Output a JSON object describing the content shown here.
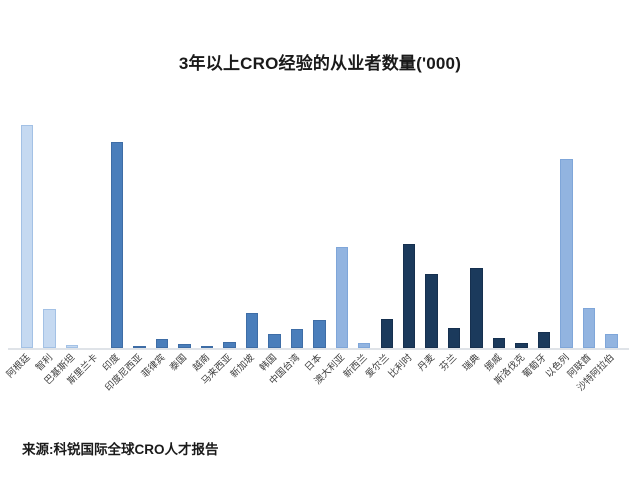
{
  "source_note": "来源:科锐国际全球CRO人才报告",
  "colors": {
    "background": "#ffffff",
    "axis_line": "#dfe3e8",
    "light_blue": "#c5d9f1",
    "medium_blue": "#4a7ebb",
    "light_medium_blue": "#92b4e0",
    "dark_navy": "#1b3a5c",
    "label_text": "#3f3f3f",
    "title_text": "#1a1a1a"
  },
  "chart_data": {
    "type": "bar",
    "title": "3年以上CRO经验的从业者数量('000)",
    "xlabel": "",
    "ylabel": "",
    "units": "'000",
    "legend": "none",
    "gridlines": false,
    "y_axis_visible": false,
    "ylim": [
      0,
      240
    ],
    "categories": [
      "阿根廷",
      "智利",
      "巴基斯坦",
      "斯里兰卡",
      "印度",
      "印度尼西亚",
      "菲律宾",
      "泰国",
      "越南",
      "马来西亚",
      "新加坡",
      "韩国",
      "中国台湾",
      "日本",
      "澳大利亚",
      "新西兰",
      "爱尔兰",
      "比利时",
      "丹麦",
      "芬兰",
      "瑞典",
      "挪威",
      "斯洛伐克",
      "葡萄牙",
      "以色列",
      "阿联酋",
      "沙特阿拉伯"
    ],
    "values": [
      223,
      39,
      3,
      0,
      206,
      2.5,
      9,
      4,
      2.5,
      6,
      35,
      14,
      19,
      28,
      101,
      5,
      29,
      104,
      74,
      20,
      80,
      10,
      5,
      16,
      189,
      40,
      14
    ],
    "bar_colors": [
      "#c5d9f1",
      "#c5d9f1",
      "#c5d9f1",
      "#c5d9f1",
      "#4a7ebb",
      "#4a7ebb",
      "#4a7ebb",
      "#4a7ebb",
      "#4a7ebb",
      "#4a7ebb",
      "#4a7ebb",
      "#4a7ebb",
      "#4a7ebb",
      "#4a7ebb",
      "#92b4e0",
      "#92b4e0",
      "#1b3a5c",
      "#1b3a5c",
      "#1b3a5c",
      "#1b3a5c",
      "#1b3a5c",
      "#1b3a5c",
      "#1b3a5c",
      "#1b3a5c",
      "#92b4e0",
      "#92b4e0",
      "#92b4e0"
    ],
    "bar_borders": [
      "#a3c1e5",
      "#a3c1e5",
      "#a3c1e5",
      "#a3c1e5",
      "#3e6da6",
      "#3e6da6",
      "#3e6da6",
      "#3e6da6",
      "#3e6da6",
      "#3e6da6",
      "#3e6da6",
      "#3e6da6",
      "#3e6da6",
      "#3e6da6",
      "#7fa6d9",
      "#7fa6d9",
      "#16304f",
      "#16304f",
      "#16304f",
      "#16304f",
      "#16304f",
      "#16304f",
      "#16304f",
      "#16304f",
      "#7fa6d9",
      "#7fa6d9",
      "#7fa6d9"
    ]
  }
}
